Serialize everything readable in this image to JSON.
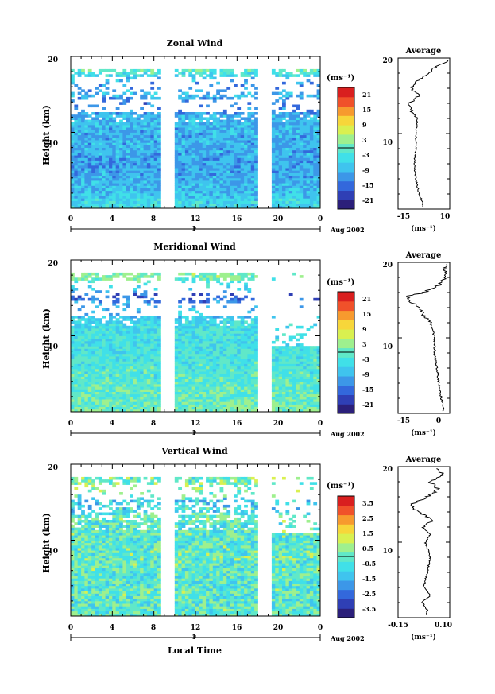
{
  "panels": [
    {
      "title": "Zonal Wind",
      "ylabel": "Height (km)",
      "yticks": [
        "20",
        "10"
      ],
      "xticks": [
        "0",
        "4",
        "8",
        "12",
        "16",
        "20",
        "0"
      ],
      "day_label": "1",
      "date_label": "Aug 2002",
      "cb_unit": "(ms⁻¹)",
      "cb_labels": [
        "21",
        "15",
        "9",
        "3",
        "-3",
        "-9",
        "-15",
        "-21"
      ],
      "avg_title": "Average",
      "avg_xticks": [
        "-15",
        "10"
      ],
      "avg_yticks": [
        "20",
        "10"
      ],
      "avg_unit": "(ms⁻¹)"
    },
    {
      "title": "Meridional Wind",
      "ylabel": "Height (km)",
      "yticks": [
        "20",
        "10"
      ],
      "xticks": [
        "0",
        "4",
        "8",
        "12",
        "16",
        "20",
        "0"
      ],
      "day_label": "1",
      "date_label": "Aug 2002",
      "cb_unit": "(ms⁻¹)",
      "cb_labels": [
        "21",
        "15",
        "9",
        "3",
        "-3",
        "-9",
        "-15",
        "-21"
      ],
      "avg_title": "Average",
      "avg_xticks": [
        "-15",
        "0"
      ],
      "avg_yticks": [
        "20",
        "10"
      ],
      "avg_unit": "(ms⁻¹)"
    },
    {
      "title": "Vertical Wind",
      "ylabel": "Height (km)",
      "yticks": [
        "20",
        "10"
      ],
      "xticks": [
        "0",
        "4",
        "8",
        "12",
        "16",
        "20",
        "0"
      ],
      "day_label": "1",
      "date_label": "Aug 2002",
      "cb_unit": "(ms⁻¹)",
      "cb_labels": [
        "3.5",
        "2.5",
        "1.5",
        "0.5",
        "-0.5",
        "-1.5",
        "-2.5",
        "-3.5"
      ],
      "avg_title": "Average",
      "avg_xticks": [
        "-0.15",
        "0.10"
      ],
      "avg_yticks": [
        "20",
        "10"
      ],
      "avg_unit": "(ms⁻¹)",
      "xlabel": "Local Time"
    }
  ],
  "colors": {
    "colorbar": [
      "#2b1f7a",
      "#2f3fb5",
      "#3368dc",
      "#3c97e8",
      "#3fc4ee",
      "#40e0e8",
      "#60e8c8",
      "#9ef08e",
      "#d9f050",
      "#f7d63a",
      "#f79a2e",
      "#f0512a",
      "#d91f1f"
    ],
    "no_data": "#ffffff"
  },
  "chart_data": [
    {
      "type": "heatmap",
      "title": "Zonal Wind",
      "ylabel": "Height (km)",
      "xlim": [
        0,
        24
      ],
      "ylim": [
        0,
        20
      ],
      "clim": [
        -24,
        24
      ],
      "colorbar_levels": [
        -21,
        -15,
        -9,
        -3,
        3,
        9,
        15,
        21
      ],
      "data_gaps_local_time": [
        [
          8.7,
          9.9
        ],
        [
          18.1,
          19.3
        ]
      ],
      "profile_heights_km": [
        1,
        2,
        4,
        6,
        8,
        10,
        12,
        13,
        14,
        15,
        16,
        17,
        18,
        19,
        19.5
      ],
      "profile_values": [
        -5,
        -7,
        -9,
        -10,
        -9,
        -9,
        -8,
        -12,
        -13,
        -7,
        -12,
        -8,
        -1,
        4,
        10
      ],
      "average_xlim": [
        -20,
        12
      ]
    },
    {
      "type": "heatmap",
      "title": "Meridional Wind",
      "ylabel": "Height (km)",
      "xlim": [
        0,
        24
      ],
      "ylim": [
        0,
        20
      ],
      "clim": [
        -24,
        24
      ],
      "colorbar_levels": [
        -21,
        -15,
        -9,
        -3,
        3,
        9,
        15,
        21
      ],
      "data_gaps_local_time": [
        [
          8.7,
          9.9
        ],
        [
          18.1,
          19.3
        ]
      ],
      "profile_heights_km": [
        1,
        2,
        4,
        6,
        8,
        10,
        12,
        13,
        14,
        15,
        15.5,
        16,
        17,
        18
      ],
      "profile_values": [
        1,
        0,
        -1,
        -2,
        -3,
        -3,
        -5,
        -8,
        -10,
        -15,
        -16,
        -8,
        -1,
        2
      ],
      "average_xlim": [
        -20,
        4
      ]
    },
    {
      "type": "heatmap",
      "title": "Vertical Wind",
      "ylabel": "Height (km)",
      "xlabel": "Local Time",
      "xlim": [
        0,
        24
      ],
      "ylim": [
        0,
        20
      ],
      "clim": [
        -4,
        4
      ],
      "colorbar_levels": [
        -3.5,
        -2.5,
        -1.5,
        -0.5,
        0.5,
        1.5,
        2.5,
        3.5
      ],
      "data_gaps_local_time": [
        [
          8.7,
          9.9
        ],
        [
          18.1,
          19.3
        ]
      ],
      "profile_heights_km": [
        1,
        2,
        3,
        4,
        6,
        8,
        10,
        11,
        12,
        13,
        14,
        15,
        16,
        17,
        18,
        19,
        19.5
      ],
      "profile_values": [
        -0.02,
        -0.05,
        0.0,
        -0.04,
        -0.02,
        0.0,
        -0.03,
        0.0,
        -0.05,
        0.02,
        -0.08,
        -0.12,
        -0.02,
        0.05,
        0.0,
        0.08,
        0.04
      ],
      "average_xlim": [
        -0.2,
        0.12
      ]
    }
  ]
}
